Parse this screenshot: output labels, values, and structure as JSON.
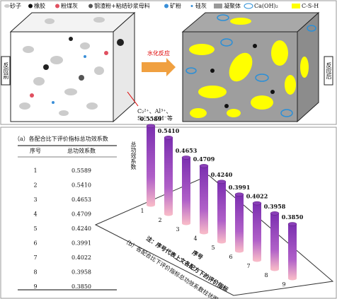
{
  "legend": [
    "砂子",
    "橡胶",
    "粉煤灰",
    "钢渣粉+粘结砂浆母料",
    "矿粉",
    "硅灰",
    "凝聚体",
    "Ca(OH)₂",
    "C-S-H"
  ],
  "diagram": {
    "before": "反应前",
    "after": "反应后",
    "arrow": "水化反应",
    "ions": [
      "C₂²⁺、Al³⁺、",
      "S₂²⁻、OH⁻等"
    ]
  },
  "table": {
    "title": "（a）各配合比下评价指标总功效系数",
    "header": [
      "序号",
      "总功效系数"
    ],
    "rows": [
      [
        "1",
        "0.5589"
      ],
      [
        "2",
        "0.5410"
      ],
      [
        "3",
        "0.4653"
      ],
      [
        "4",
        "0.4709"
      ],
      [
        "5",
        "0.4240"
      ],
      [
        "6",
        "0.3991"
      ],
      [
        "7",
        "0.4022"
      ],
      [
        "8",
        "0.3958"
      ],
      [
        "9",
        "0.3850"
      ]
    ]
  },
  "chart_data": {
    "type": "bar",
    "y_label": "总功效系数",
    "x_label": "序号",
    "note": "注：序号代表上文各配方下的评价指标",
    "caption": "（b）各配合比下评价指标总功效系数柱状图",
    "categories": [
      "1",
      "2",
      "3",
      "4",
      "5",
      "6",
      "7",
      "8",
      "9"
    ],
    "values": [
      0.5589,
      0.541,
      0.4653,
      0.4709,
      0.424,
      0.3991,
      0.4022,
      0.3958,
      0.385
    ],
    "value_labels": [
      "0.5589",
      "0.5410",
      "0.4653",
      "0.4709",
      "0.4240",
      "0.3991",
      "0.4022",
      "0.3958",
      "0.3850"
    ],
    "color": "#8a3fb8"
  }
}
